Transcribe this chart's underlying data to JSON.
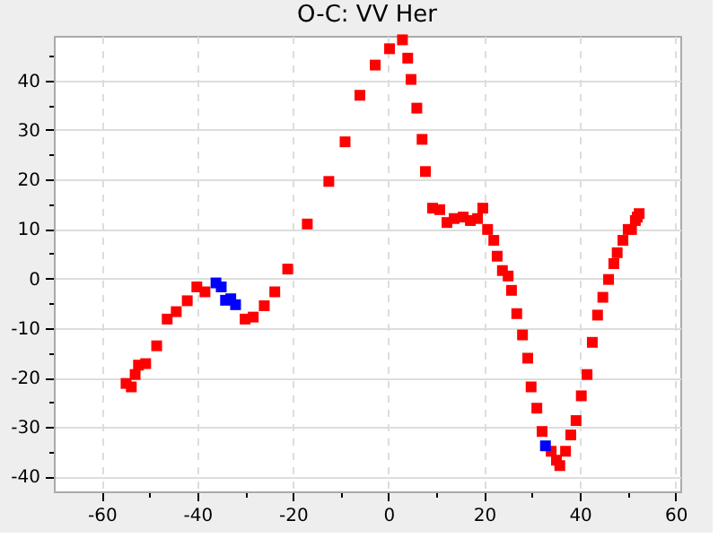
{
  "chart_data": {
    "type": "scatter",
    "title": "O-C: VV Her",
    "marker": "square",
    "grid": true,
    "xlim": [
      -70,
      61
    ],
    "ylim": [
      -43,
      49
    ],
    "xticks": [
      -60,
      {
        "value": -50,
        "label": null
      },
      -40,
      {
        "value": -30,
        "label": null
      },
      -20,
      {
        "value": -10,
        "label": null
      },
      0,
      {
        "value": 10,
        "label": null
      },
      20,
      {
        "value": 30,
        "label": null
      },
      40,
      {
        "value": 50,
        "label": null
      },
      60
    ],
    "yticks": [
      -40,
      {
        "value": -35,
        "label": null
      },
      -30,
      {
        "value": -25,
        "label": null
      },
      -20,
      {
        "value": -15,
        "label": null
      },
      -10,
      {
        "value": -5,
        "label": null
      },
      0,
      {
        "value": 5,
        "label": null
      },
      10,
      {
        "value": 15,
        "label": null
      },
      20,
      {
        "value": 25,
        "label": null
      },
      30,
      {
        "value": 35,
        "label": null
      },
      40,
      {
        "value": 45,
        "label": null
      }
    ],
    "series": [
      {
        "color": "#ff0000",
        "x": [
          -54.9,
          -53.8,
          -53.0,
          -52.3,
          -50.8,
          -48.5,
          -46.3,
          -44.4,
          -42.1,
          -40.1,
          -38.4,
          -30.0,
          -28.3,
          -26.0,
          -23.8,
          -21.1,
          -17.0,
          -12.5,
          -9.1,
          -6.0,
          -2.8,
          0.2,
          2.9,
          4.0,
          4.7,
          5.9,
          7.0,
          7.7,
          9.2,
          10.7,
          12.2,
          13.7,
          15.6,
          17.1,
          18.6,
          19.7,
          20.7,
          22.0,
          22.7,
          23.8,
          25.0,
          25.7,
          26.8,
          28.0,
          29.1,
          29.8,
          31.0,
          32.1,
          34.0,
          35.1,
          35.8,
          37.0,
          38.1,
          39.2,
          40.3,
          41.5,
          42.6,
          43.7,
          44.8,
          46.0,
          47.1,
          47.8,
          49.0,
          50.1,
          50.8,
          51.6,
          52.0,
          52.4
        ],
        "values": [
          -21.2,
          -21.9,
          -19.4,
          -17.5,
          -17.2,
          -13.6,
          -8.2,
          -6.7,
          -4.5,
          -1.7,
          -2.7,
          -8.2,
          -7.8,
          -5.5,
          -2.7,
          1.9,
          11.0,
          19.6,
          27.6,
          37.0,
          43.1,
          46.4,
          48.2,
          44.5,
          40.2,
          34.4,
          28.1,
          21.6,
          14.2,
          13.9,
          11.3,
          12.1,
          12.4,
          11.7,
          12.1,
          14.2,
          9.9,
          7.7,
          4.5,
          1.6,
          0.5,
          -2.4,
          -7.1,
          -11.4,
          -16.1,
          -21.9,
          -26.2,
          -30.9,
          -34.9,
          -36.7,
          -37.8,
          -34.9,
          -31.6,
          -28.7,
          -23.7,
          -19.4,
          -12.9,
          -7.4,
          -3.8,
          -0.2,
          3.0,
          5.2,
          7.7,
          9.9,
          9.9,
          11.7,
          12.4,
          13.1
        ]
      },
      {
        "color": "#0000ff",
        "x": [
          -36.1,
          -35.0,
          -34.1,
          -33.0,
          -32.0,
          32.8
        ],
        "values": [
          -0.9,
          -1.7,
          -4.4,
          -4.1,
          -5.3,
          -33.8
        ]
      }
    ]
  }
}
